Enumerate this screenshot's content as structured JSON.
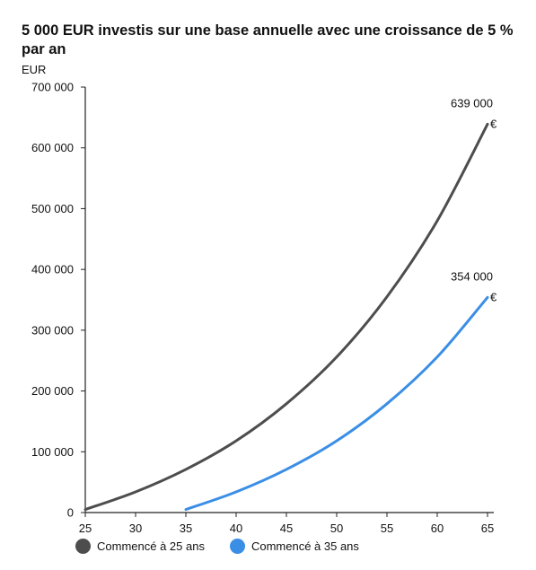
{
  "chart_data": {
    "type": "line",
    "title": "5 000 EUR investis sur une base annuelle avec une croissance de 5 % par an",
    "ylabel": "EUR",
    "xlim": [
      25,
      65
    ],
    "ylim": [
      0,
      700000
    ],
    "x_ticks": [
      "25",
      "30",
      "35",
      "40",
      "45",
      "50",
      "55",
      "60",
      "65"
    ],
    "y_ticks": [
      "0",
      "100 000",
      "200 000",
      "300 000",
      "400 000",
      "500 000",
      "600 000",
      "700 000"
    ],
    "grid": false,
    "legend_position": "bottom-left",
    "series": [
      {
        "name": "Commencé à 25 ans",
        "color": "#4d4d4d",
        "x": [
          25,
          30,
          35,
          40,
          45,
          50,
          55,
          60,
          65
        ],
        "y": [
          5000,
          34000,
          71000,
          118000,
          179000,
          256000,
          355000,
          480000,
          639000
        ],
        "end_label": "639 000",
        "end_unit": "€"
      },
      {
        "name": "Commencé à 35 ans",
        "color": "#3a8ee6",
        "x": [
          35,
          40,
          45,
          50,
          55,
          60,
          65
        ],
        "y": [
          5000,
          34000,
          71000,
          118000,
          179000,
          256000,
          354000
        ],
        "end_label": "354 000",
        "end_unit": "€"
      }
    ]
  }
}
